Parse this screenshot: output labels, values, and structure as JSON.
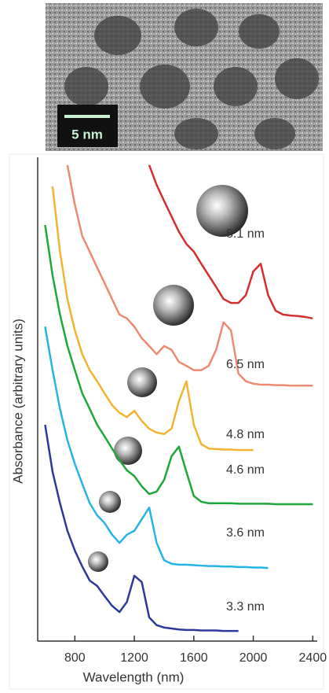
{
  "micrograph": {
    "scale_bar": "5 nm"
  },
  "chart_data": {
    "type": "line",
    "x_label": "Wavelength (nm)",
    "y_label": "Absorbance (arbitrary units)",
    "xlim": [
      550,
      2430
    ],
    "xticks": [
      800,
      1200,
      1600,
      2000,
      2400
    ],
    "ylim": [
      0,
      100
    ],
    "x": [
      600,
      650,
      700,
      750,
      800,
      850,
      900,
      950,
      1000,
      1050,
      1100,
      1150,
      1200,
      1250,
      1300,
      1350,
      1400,
      1450,
      1500,
      1550,
      1600,
      1650,
      1700,
      1750,
      1800,
      1850,
      1900,
      1950,
      2000,
      2050,
      2100,
      2150,
      2200,
      2250,
      2300,
      2350,
      2400
    ],
    "series": [
      {
        "name": "8.1 nm",
        "color": "#d32f2f",
        "values": [
          null,
          null,
          null,
          null,
          null,
          null,
          null,
          null,
          null,
          null,
          null,
          null,
          null,
          null,
          98.4,
          94.3,
          91,
          87.8,
          84.6,
          82.1,
          80.5,
          78,
          75.6,
          73.2,
          70.7,
          69.9,
          69.9,
          71.5,
          76.4,
          78,
          71.5,
          68.3,
          67.5,
          67.3,
          67.2,
          67,
          66.7
        ]
      },
      {
        "name": "6.5 nm",
        "color": "#ee8a72",
        "values": [
          null,
          null,
          null,
          98.4,
          90.2,
          83.7,
          80.5,
          77.2,
          74,
          70.7,
          67.5,
          66.7,
          65,
          62.6,
          61,
          59.3,
          61,
          60.2,
          57.7,
          56.9,
          56,
          56,
          56.9,
          60.2,
          65.9,
          64.2,
          55.3,
          53.7,
          53.2,
          53,
          53,
          52.9,
          52.9,
          52.8,
          52.8,
          52.8,
          52.8
        ]
      },
      {
        "name": "4.8 nm",
        "color": "#f2b430",
        "values": [
          null,
          94,
          80.5,
          70.7,
          64.2,
          59.3,
          56,
          53.7,
          51.2,
          48.8,
          47.2,
          46.3,
          47.6,
          45.5,
          43.9,
          43.1,
          42.8,
          43.9,
          49.6,
          53.7,
          44.7,
          40.7,
          39.8,
          39.7,
          39.6,
          39.6,
          39.5,
          39.5,
          39.5,
          null,
          null,
          null,
          null,
          null,
          null,
          null,
          null
        ]
      },
      {
        "name": "4.6 nm",
        "color": "#1fa83a",
        "values": [
          86,
          75.6,
          67.5,
          61,
          56,
          51.2,
          48,
          44.7,
          42.3,
          39.8,
          37.4,
          35.3,
          34.1,
          32,
          30.4,
          30.9,
          33.3,
          38.2,
          40.2,
          35,
          30,
          28.8,
          28.5,
          28.5,
          28.5,
          28.5,
          28.4,
          28.4,
          28.4,
          28.4,
          28.4,
          28.3,
          28.3,
          28.3,
          28.3,
          28.3,
          28.3
        ]
      },
      {
        "name": "3.6 nm",
        "color": "#25b4e6",
        "values": [
          65,
          56,
          48,
          41.5,
          36.6,
          32.5,
          28.5,
          26,
          24.4,
          22,
          20.3,
          22,
          22.8,
          25.2,
          27.6,
          20.3,
          16.7,
          16,
          15.8,
          15.8,
          15.7,
          15.6,
          15.5,
          15.5,
          15.4,
          15.4,
          15.3,
          15.3,
          15.2,
          15.2,
          15.1,
          null,
          null,
          null,
          null,
          null,
          null
        ]
      },
      {
        "name": "3.3 nm",
        "color": "#2b3a9a",
        "values": [
          44.7,
          35,
          28.5,
          22.8,
          18.7,
          15.4,
          12.5,
          11.4,
          9.3,
          7.3,
          6.0,
          8.1,
          13.5,
          12.2,
          4.9,
          3.3,
          2.8,
          2.6,
          2.4,
          2.3,
          2.3,
          2.2,
          2.2,
          2.2,
          2.1,
          2.1,
          2.1,
          null,
          null,
          null,
          null,
          null,
          null,
          null,
          null,
          null,
          null
        ]
      }
    ]
  }
}
